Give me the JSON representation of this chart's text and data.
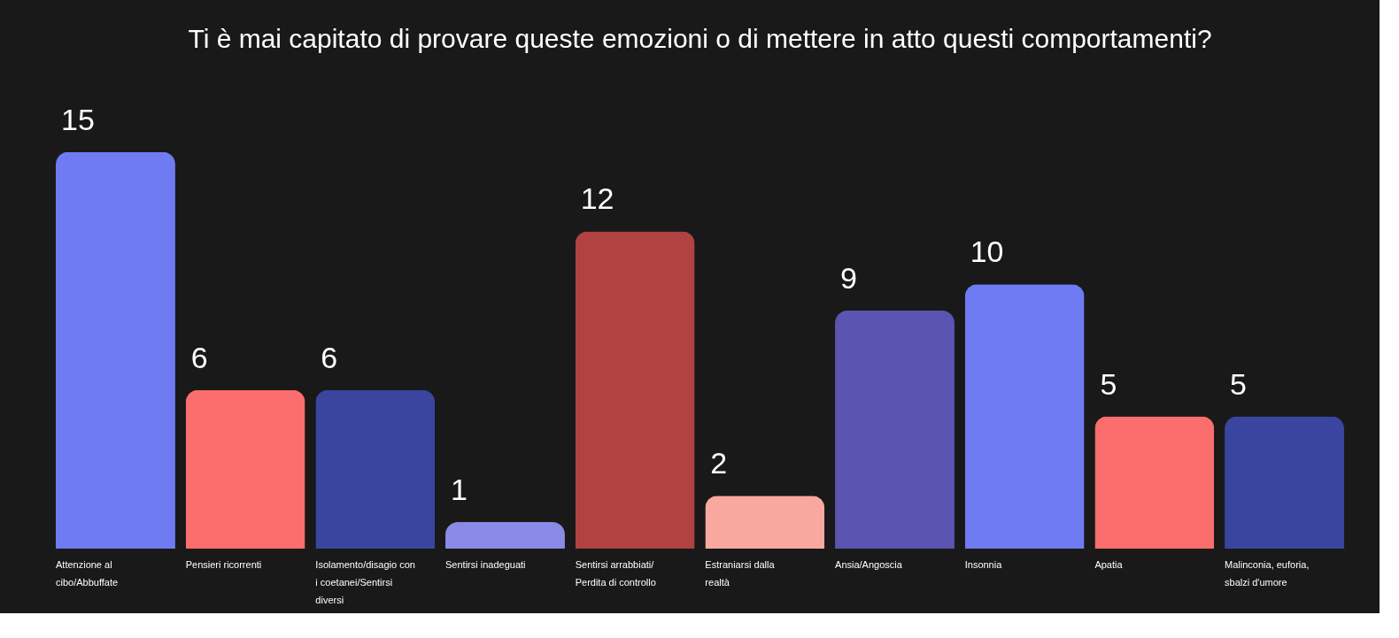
{
  "chart_data": {
    "type": "bar",
    "title": "Ti è mai capitato di provare queste emozioni o di mettere in atto questi comportamenti?",
    "categories": [
      "Attenzione al cibo/Abbuffate",
      "Pensieri ricorrenti",
      "Isolamento/disagio con i coetanei/Sentirsi diversi",
      "Sentirsi inadeguati",
      "Sentirsi arrabbiati/ Perdita di controllo",
      "Estraniarsi dalla realtà",
      "Ansia/Angoscia",
      "Insonnia",
      "Apatia",
      "Malinconia, euforia, sbalzi d'umore"
    ],
    "values": [
      15,
      6,
      6,
      1,
      12,
      2,
      9,
      10,
      5,
      5
    ],
    "colors": [
      "#6f7bf2",
      "#fc6d6d",
      "#3a45a0",
      "#8b8ae6",
      "#b04242",
      "#f9a8a0",
      "#5b54b0",
      "#6f7bf2",
      "#fc6d6d",
      "#3a45a0"
    ],
    "data_labels": true
  }
}
